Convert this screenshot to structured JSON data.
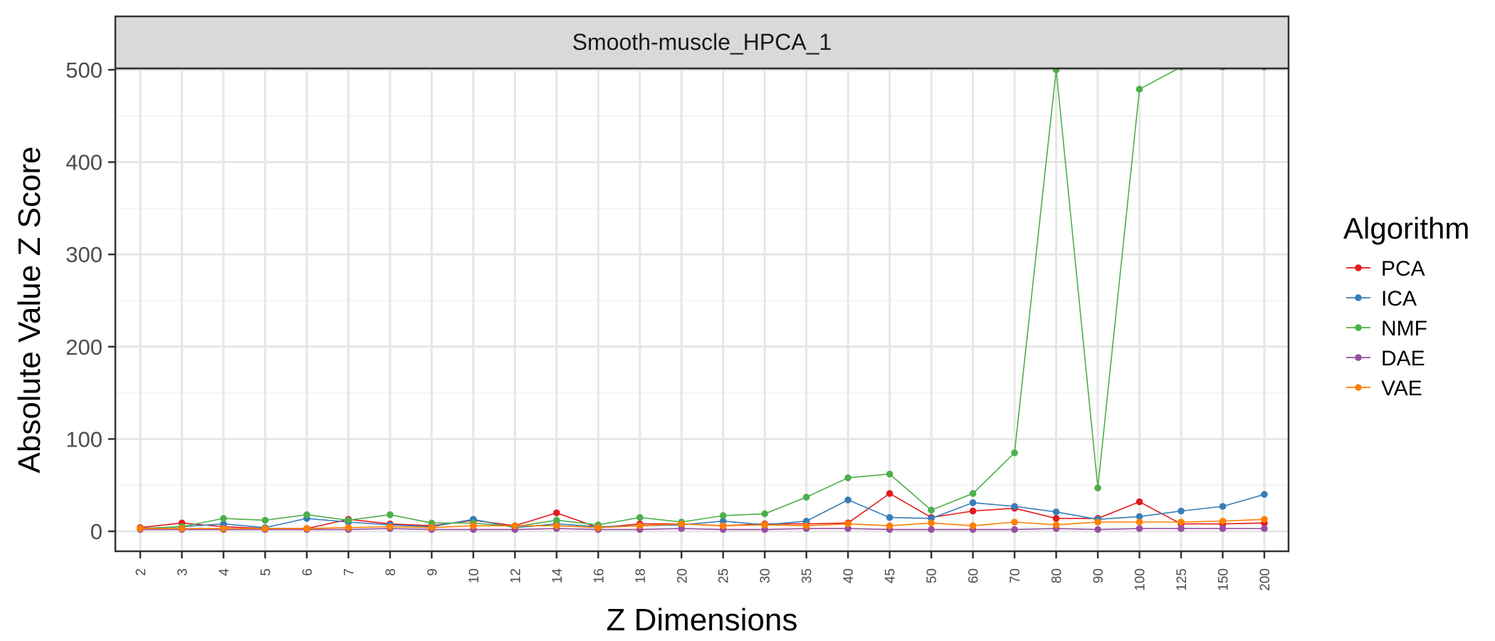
{
  "chart_data": {
    "type": "line",
    "title": "Smooth-muscle_HPCA_1",
    "xlabel": "Z Dimensions",
    "ylabel": "Absolute Value Z Score",
    "x": [
      "2",
      "3",
      "4",
      "5",
      "6",
      "7",
      "8",
      "9",
      "10",
      "12",
      "14",
      "16",
      "18",
      "20",
      "25",
      "30",
      "35",
      "40",
      "45",
      "50",
      "60",
      "70",
      "80",
      "90",
      "100",
      "125",
      "150",
      "200"
    ],
    "ylim": [
      0,
      500
    ],
    "yticks": [
      "0",
      "100",
      "200",
      "300",
      "400",
      "500"
    ],
    "grid": true,
    "legend": {
      "title": "Algorithm",
      "position": "right"
    },
    "series": [
      {
        "name": "PCA",
        "color": "#E41A1C",
        "values": [
          4,
          9,
          5,
          3,
          3,
          13,
          8,
          6,
          12,
          6,
          20,
          4,
          8,
          8,
          6,
          8,
          8,
          9,
          41,
          15,
          22,
          25,
          14,
          14,
          32,
          8,
          8,
          9
        ]
      },
      {
        "name": "ICA",
        "color": "#377EB8",
        "values": [
          3,
          5,
          8,
          4,
          14,
          10,
          7,
          5,
          13,
          4,
          8,
          5,
          6,
          7,
          11,
          7,
          11,
          34,
          15,
          14,
          31,
          27,
          21,
          13,
          16,
          22,
          27,
          40
        ]
      },
      {
        "name": "NMF",
        "color": "#4DAF4A",
        "values": [
          3,
          5,
          14,
          12,
          18,
          12,
          18,
          9,
          9,
          5,
          12,
          7,
          15,
          10,
          17,
          19,
          37,
          58,
          62,
          23,
          41,
          85,
          500,
          47,
          479,
          503,
          503,
          503
        ]
      },
      {
        "name": "DAE",
        "color": "#984EA3",
        "values": [
          2,
          2,
          2,
          2,
          2,
          2,
          3,
          2,
          2,
          2,
          3,
          2,
          2,
          3,
          2,
          2,
          3,
          3,
          2,
          2,
          2,
          2,
          3,
          2,
          3,
          3,
          3,
          3
        ]
      },
      {
        "name": "VAE",
        "color": "#FF7F00",
        "values": [
          3,
          3,
          3,
          3,
          3,
          4,
          5,
          4,
          6,
          6,
          6,
          4,
          6,
          8,
          6,
          7,
          6,
          8,
          6,
          9,
          6,
          10,
          7,
          10,
          10,
          10,
          11,
          13
        ]
      }
    ]
  }
}
